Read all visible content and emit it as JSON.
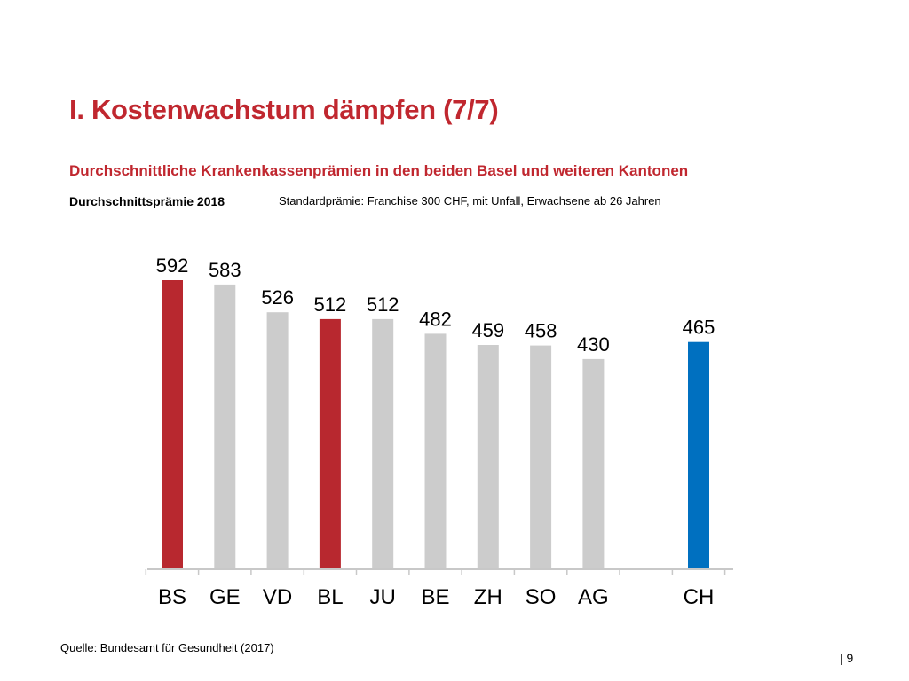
{
  "slide": {
    "title": "I. Kostenwachstum dämpfen (7/7)",
    "subtitle": "Durchschnittliche Krankenkassenprämien in den beiden Basel und weiteren Kantonen",
    "chart_label": "Durchschnittsprämie 2018",
    "chart_note": "Standardprämie: Franchise 300 CHF, mit Unfall, Erwachsene ab 26 Jahren",
    "source": "Quelle: Bundesamt für Gesundheit (2017)",
    "page_number": "|  9"
  },
  "colors": {
    "title": "#c0272f",
    "basel": "#b8282f",
    "other": "#cccccc",
    "ch": "#0070c0",
    "axis": "#c8c8c8"
  },
  "chart_data": {
    "type": "bar",
    "categories": [
      "BS",
      "GE",
      "VD",
      "BL",
      "JU",
      "BE",
      "ZH",
      "SO",
      "AG",
      "CH"
    ],
    "values": [
      592,
      583,
      526,
      512,
      512,
      482,
      459,
      458,
      430,
      465
    ],
    "bar_colors": [
      "basel",
      "other",
      "other",
      "basel",
      "other",
      "other",
      "other",
      "other",
      "other",
      "ch"
    ],
    "data_labels": [
      "592",
      "583",
      "526",
      "512",
      "512",
      "482",
      "459",
      "458",
      "430",
      "465"
    ],
    "gap_before_last_category": true,
    "ylim": [
      0,
      600
    ],
    "grid": false,
    "legend": "none"
  }
}
